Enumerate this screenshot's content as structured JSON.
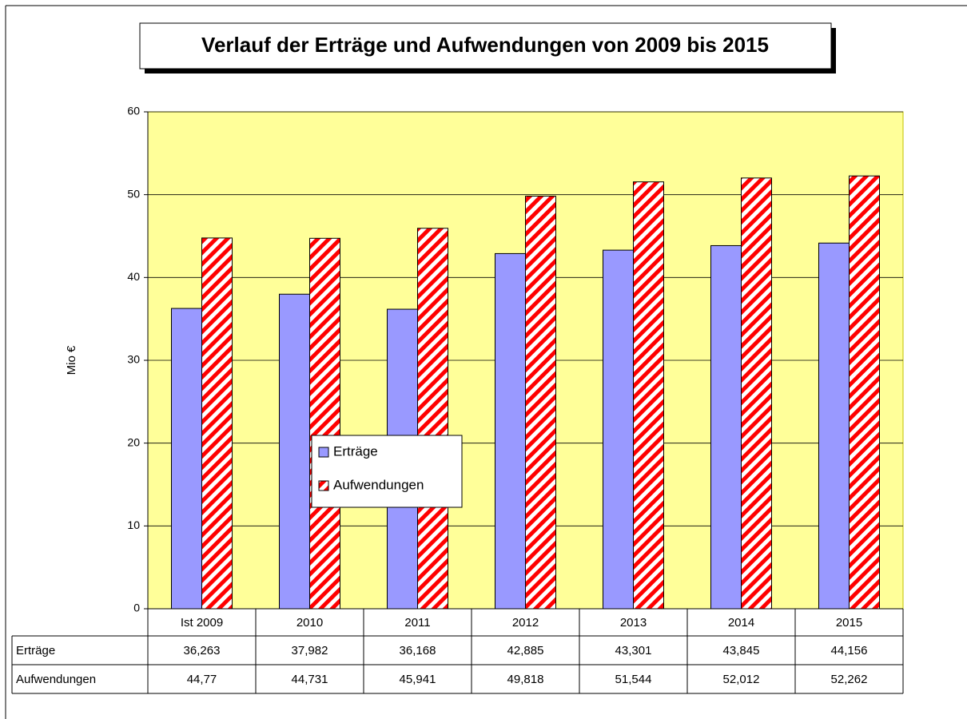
{
  "chart_data": {
    "type": "bar",
    "title": "Verlauf der Erträge und Aufwendungen von 2009 bis 2015",
    "ylabel": "Mio €",
    "categories": [
      "Ist 2009",
      "2010",
      "2011",
      "2012",
      "2013",
      "2014",
      "2015"
    ],
    "series": [
      {
        "name": "Erträge",
        "color": "#9999ff",
        "hatch": false,
        "values": [
          36.263,
          37.982,
          36.168,
          42.885,
          43.301,
          43.845,
          44.156
        ],
        "value_labels": [
          "36,263",
          "37,982",
          "36,168",
          "42,885",
          "43,301",
          "43,845",
          "44,156"
        ]
      },
      {
        "name": "Aufwendungen",
        "color": "#ff0000",
        "hatch": true,
        "values": [
          44.77,
          44.731,
          45.941,
          49.818,
          51.544,
          52.012,
          52.262
        ],
        "value_labels": [
          "44,77",
          "44,731",
          "45,941",
          "49,818",
          "51,544",
          "52,012",
          "52,262"
        ]
      }
    ],
    "ylim": [
      0,
      60
    ],
    "yticks": [
      0,
      10,
      20,
      30,
      40,
      50,
      60
    ],
    "grid": true,
    "plot_background": "#ffff99"
  }
}
